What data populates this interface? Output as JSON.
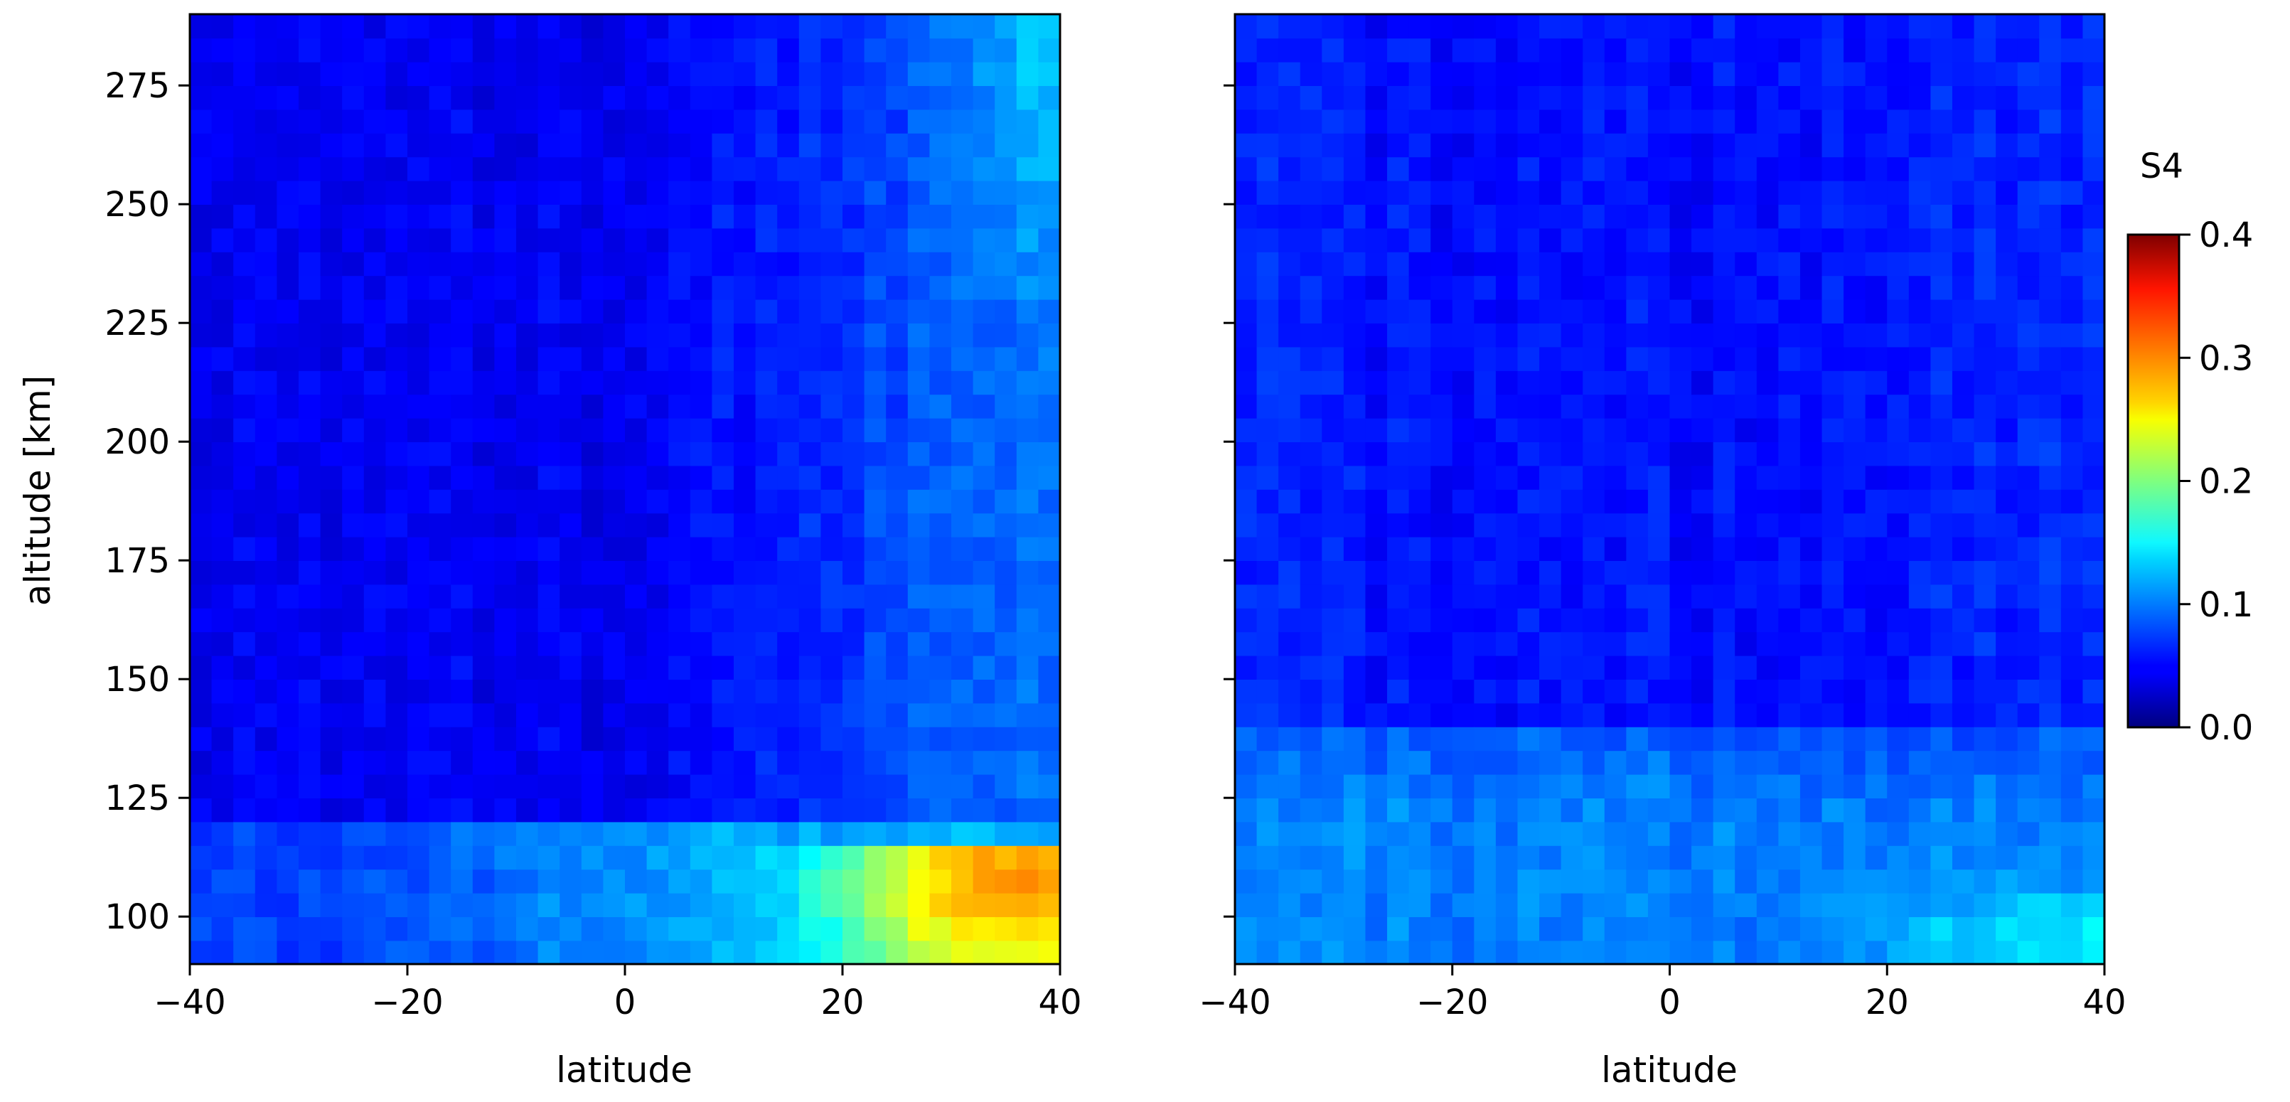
{
  "chart_data": [
    {
      "type": "heatmap",
      "title": "",
      "xlabel": "latitude",
      "ylabel": "altitude [km]",
      "xlim": [
        -40,
        40
      ],
      "ylim": [
        90,
        290
      ],
      "xticks": [
        -40,
        -20,
        0,
        20,
        40
      ],
      "xtick_labels": [
        "−40",
        "−20",
        "0",
        "20",
        "40"
      ],
      "yticks": [
        100,
        125,
        150,
        175,
        200,
        225,
        250,
        275
      ],
      "ytick_labels": [
        "100",
        "125",
        "150",
        "175",
        "200",
        "225",
        "250",
        "275"
      ],
      "colormap": "jet",
      "grid": false,
      "description_of_values": "S4 mostly 0.03-0.12 above 120 km, increasing toward +40 latitude; enhanced band 90-120 km peaking ~0.33 near 30-40 latitude, 105 km",
      "regions": [
        {
          "lat": [
            -40,
            10
          ],
          "alt": [
            120,
            290
          ],
          "s4": [
            0.02,
            0.06
          ]
        },
        {
          "lat": [
            10,
            40
          ],
          "alt": [
            120,
            290
          ],
          "s4": [
            0.06,
            0.12
          ]
        },
        {
          "lat": [
            -40,
            10
          ],
          "alt": [
            90,
            120
          ],
          "s4": [
            0.06,
            0.14
          ]
        },
        {
          "lat": [
            10,
            40
          ],
          "alt": [
            90,
            115
          ],
          "s4": [
            0.15,
            0.33
          ]
        }
      ]
    },
    {
      "type": "heatmap",
      "title": "",
      "xlabel": "latitude",
      "ylabel": "",
      "xlim": [
        -40,
        40
      ],
      "ylim": [
        90,
        290
      ],
      "xticks": [
        -40,
        -20,
        0,
        20,
        40
      ],
      "xtick_labels": [
        "−40",
        "−20",
        "0",
        "20",
        "40"
      ],
      "yticks": [
        100,
        125,
        150,
        175,
        200,
        225,
        250,
        275
      ],
      "ytick_labels": [],
      "colormap": "jet",
      "grid": false,
      "description_of_values": "S4 ~0.05-0.08 above 140 km; 0.08-0.14 below 135 km, highest ~0.15 near 35-40 latitude at 90-110 km",
      "regions": [
        {
          "lat": [
            -40,
            40
          ],
          "alt": [
            140,
            290
          ],
          "s4": [
            0.05,
            0.08
          ]
        },
        {
          "lat": [
            -40,
            40
          ],
          "alt": [
            90,
            135
          ],
          "s4": [
            0.08,
            0.15
          ]
        }
      ]
    }
  ],
  "colorbar": {
    "title": "S4",
    "range": [
      0.0,
      0.4
    ],
    "ticks": [
      0.0,
      0.1,
      0.2,
      0.3,
      0.4
    ],
    "tick_labels": [
      "0.0",
      "0.1",
      "0.2",
      "0.3",
      "0.4"
    ],
    "colormap": "jet"
  }
}
